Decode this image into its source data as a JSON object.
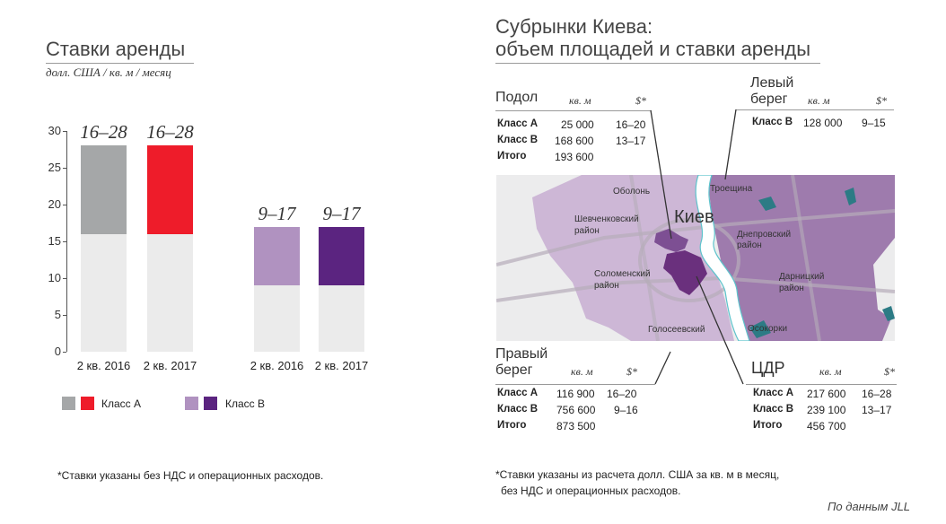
{
  "left": {
    "title": "Ставки аренды",
    "subtitle": "долл. США / кв. м / месяц",
    "legend": {
      "class_a": "Класс А",
      "class_b": "Класс В"
    },
    "note": "*Ставки указаны без НДС и операционных расходов."
  },
  "chart_data": {
    "type": "bar",
    "ylim": [
      0,
      30
    ],
    "yticks": [
      "0",
      "5",
      "10",
      "15",
      "20",
      "25",
      "30"
    ],
    "categories": [
      "2 кв. 2016",
      "2 кв. 2017",
      "2 кв. 2016",
      "2 кв. 2017"
    ],
    "bars": [
      {
        "low": 16,
        "high": 28,
        "label": "16–28",
        "color": "#a5a7a8"
      },
      {
        "low": 16,
        "high": 28,
        "label": "16–28",
        "color": "#ee1c2a"
      },
      {
        "low": 9,
        "high": 17,
        "label": "9–17",
        "color": "#b092c0"
      },
      {
        "low": 9,
        "high": 17,
        "label": "9–17",
        "color": "#5b2480"
      }
    ],
    "base_color": "#ebebeb",
    "legend_colors": [
      "#a5a7a8",
      "#ee1c2a",
      "#b092c0",
      "#5b2480"
    ]
  },
  "right": {
    "title_line1": "Субрынки Киева:",
    "title_line2": "объем площадей и ставки аренды",
    "podol": {
      "title": "Подол",
      "h_area": "кв. м",
      "h_rate": "$*",
      "rows": [
        {
          "cls": "Класс А",
          "area": "25 000",
          "rate": "16–20"
        },
        {
          "cls": "Класс В",
          "area": "168 600",
          "rate": "13–17"
        },
        {
          "cls": "Итого",
          "area": "193 600",
          "rate": ""
        }
      ]
    },
    "left_bank": {
      "title1": "Левый",
      "title2": "берег",
      "h_area": "кв. м",
      "h_rate": "$*",
      "rows": [
        {
          "cls": "Класс В",
          "area": "128 000",
          "rate": "9–15"
        }
      ]
    },
    "right_bank": {
      "title1": "Правый",
      "title2": "берег",
      "h_area": "кв. м",
      "h_rate": "$*",
      "rows": [
        {
          "cls": "Класс А",
          "area": "116 900",
          "rate": "16–20"
        },
        {
          "cls": "Класс В",
          "area": "756 600",
          "rate": "9–16"
        },
        {
          "cls": "Итого",
          "area": "873 500",
          "rate": ""
        }
      ]
    },
    "cbd": {
      "title": "ЦДР",
      "h_area": "кв. м",
      "h_rate": "$*",
      "rows": [
        {
          "cls": "Класс А",
          "area": "217 600",
          "rate": "16–28"
        },
        {
          "cls": "Класс В",
          "area": "239 100",
          "rate": "13–17"
        },
        {
          "cls": "Итого",
          "area": "456 700",
          "rate": ""
        }
      ]
    },
    "map": {
      "city": "Киев",
      "obolon": "Оболонь",
      "troeshchina": "Троещина",
      "shevchenko1": "Шевченковский",
      "shevchenko2": "район",
      "dnepr1": "Днепровский",
      "dnepr2": "район",
      "solomen1": "Соломенский",
      "solomen2": "район",
      "darnits1": "Дарницкий",
      "darnits2": "район",
      "golos": "Голосеевский",
      "osokorki": "Осокорки"
    },
    "note_line1": "*Ставки указаны из расчета долл. США за кв. м в месяц,",
    "note_line2": "без НДС и операционных расходов.",
    "source": "По данным JLL"
  }
}
